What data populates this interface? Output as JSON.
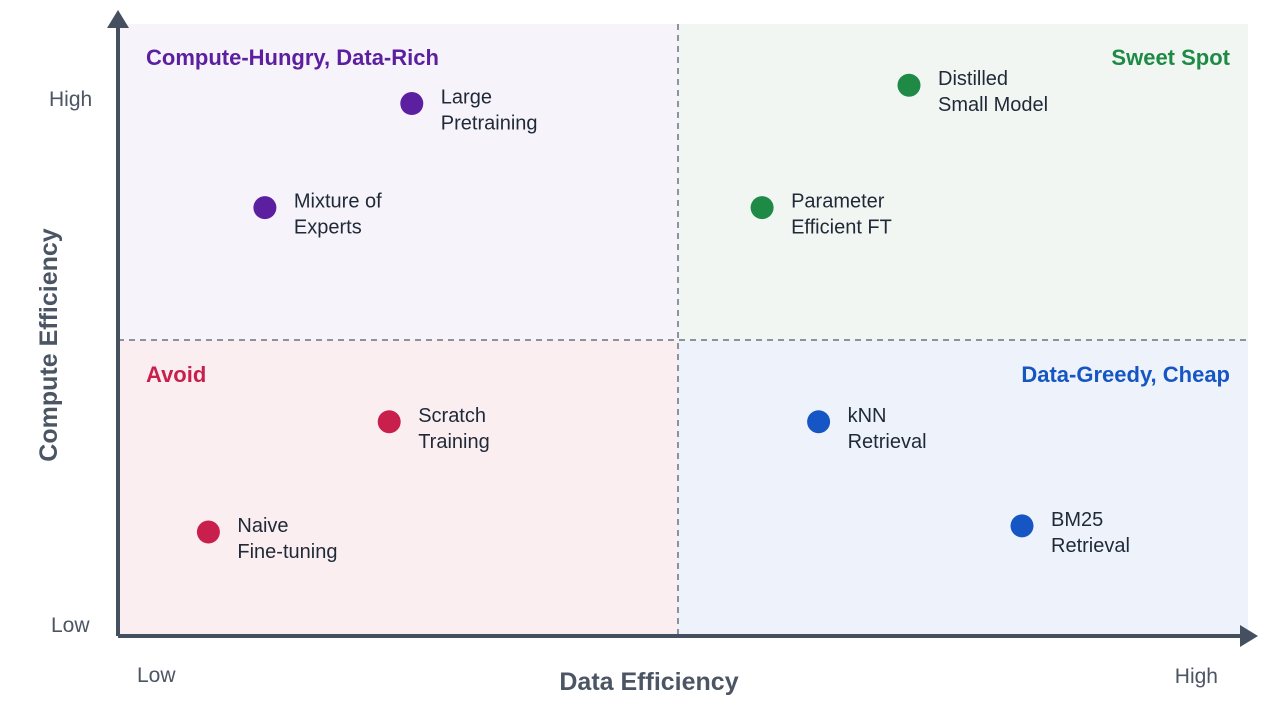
{
  "chart_data": {
    "type": "scatter",
    "title": "",
    "xlabel": "Data Efficiency",
    "ylabel": "Compute Efficiency",
    "x_ticks": [
      "Low",
      "High"
    ],
    "y_ticks": [
      "High",
      "Low"
    ],
    "xlim": [
      0,
      1
    ],
    "ylim": [
      0,
      1
    ],
    "grid": false,
    "quadrants": [
      {
        "label": "Compute-Hungry, Data-Rich",
        "position": "top-left",
        "color": "#5B1FA0",
        "fill": "#F6F3FA"
      },
      {
        "label": "Sweet Spot",
        "position": "top-right",
        "color": "#1E8A45",
        "fill": "#F2F6F3"
      },
      {
        "label": "Avoid",
        "position": "bottom-left",
        "color": "#C91F4D",
        "fill": "#FBEEF1"
      },
      {
        "label": "Data-Greedy, Cheap",
        "position": "bottom-right",
        "color": "#1656C4",
        "fill": "#EEF3FB"
      }
    ],
    "points": [
      {
        "label": [
          "Large",
          "Pretraining"
        ],
        "x": 0.26,
        "y": 0.87,
        "quadrant": "top-left"
      },
      {
        "label": [
          "Mixture of",
          "Experts"
        ],
        "x": 0.13,
        "y": 0.7,
        "quadrant": "top-left"
      },
      {
        "label": [
          "Distilled",
          "Small Model"
        ],
        "x": 0.7,
        "y": 0.9,
        "quadrant": "top-right"
      },
      {
        "label": [
          "Parameter",
          "Efficient FT"
        ],
        "x": 0.57,
        "y": 0.7,
        "quadrant": "top-right"
      },
      {
        "label": [
          "Scratch",
          "Training"
        ],
        "x": 0.24,
        "y": 0.35,
        "quadrant": "bottom-left"
      },
      {
        "label": [
          "Naive",
          "Fine-tuning"
        ],
        "x": 0.08,
        "y": 0.17,
        "quadrant": "bottom-left"
      },
      {
        "label": [
          "kNN",
          "Retrieval"
        ],
        "x": 0.62,
        "y": 0.35,
        "quadrant": "bottom-right"
      },
      {
        "label": [
          "BM25",
          "Retrieval"
        ],
        "x": 0.8,
        "y": 0.18,
        "quadrant": "bottom-right"
      }
    ]
  }
}
